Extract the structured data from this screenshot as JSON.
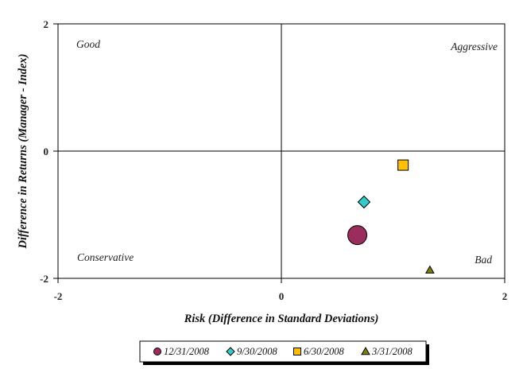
{
  "chart_data": {
    "type": "scatter",
    "title": "",
    "xlabel": "Risk (Difference in Standard Deviations)",
    "ylabel": "Difference in Returns (Manager - Index)",
    "xlim": [
      -2,
      2
    ],
    "ylim": [
      -2,
      2
    ],
    "x_ticks": [
      "-2",
      "0",
      "2"
    ],
    "y_ticks": [
      "2",
      "0",
      "-2"
    ],
    "grid": false,
    "quadrant_labels": {
      "top_left": "Good",
      "top_right": "Aggressive",
      "bottom_left": "Conservative",
      "bottom_right": "Bad"
    },
    "legend_position": "bottom",
    "series": [
      {
        "name": "12/31/2008",
        "marker": "circle",
        "color": "#9B2D5C",
        "x": 0.68,
        "y": -1.32
      },
      {
        "name": "9/30/2008",
        "marker": "diamond",
        "color": "#33CCCC",
        "x": 0.74,
        "y": -0.8
      },
      {
        "name": "6/30/2008",
        "marker": "square",
        "color": "#FFC000",
        "x": 1.09,
        "y": -0.22
      },
      {
        "name": "3/31/2008",
        "marker": "triangle",
        "color": "#808000",
        "x": 1.33,
        "y": -1.87
      }
    ]
  }
}
